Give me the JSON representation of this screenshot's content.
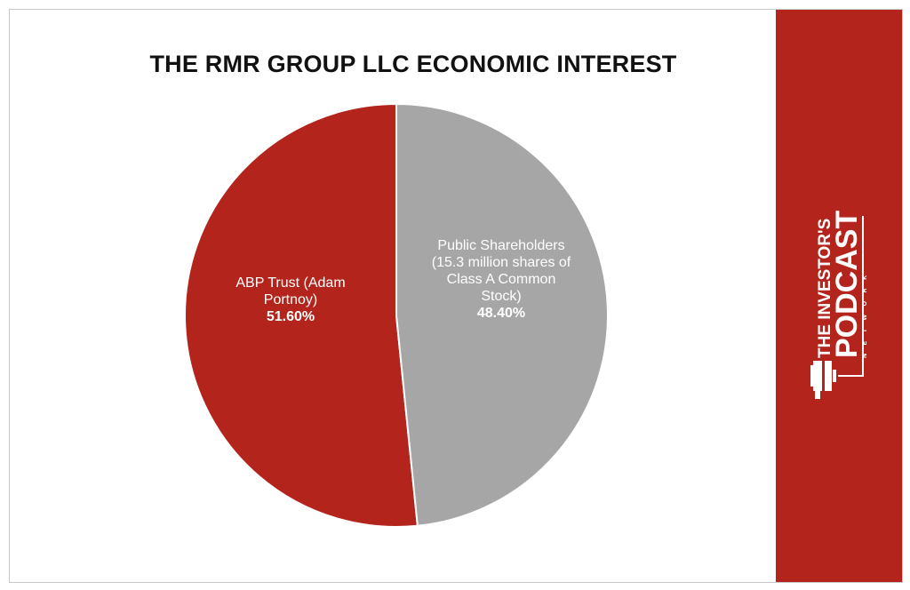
{
  "chart_data": {
    "type": "pie",
    "title": "THE RMR GROUP LLC ECONOMIC INTEREST",
    "slices": [
      {
        "label_lines": [
          "ABP Trust (Adam",
          "Portnoy)"
        ],
        "value": 51.6,
        "value_label": "51.60%",
        "color": "#b3251c"
      },
      {
        "label_lines": [
          "Public Shareholders",
          "(15.3 million shares of",
          "Class A Common",
          "Stock)"
        ],
        "value": 48.4,
        "value_label": "48.40%",
        "color": "#a6a6a6"
      }
    ],
    "start_angle_deg": 0,
    "direction": "counterclockwise"
  },
  "brand": {
    "line1": "THE INVESTOR'S",
    "line2": "PODCAST",
    "line3": "NETWORK",
    "panel_color": "#b3251c"
  }
}
